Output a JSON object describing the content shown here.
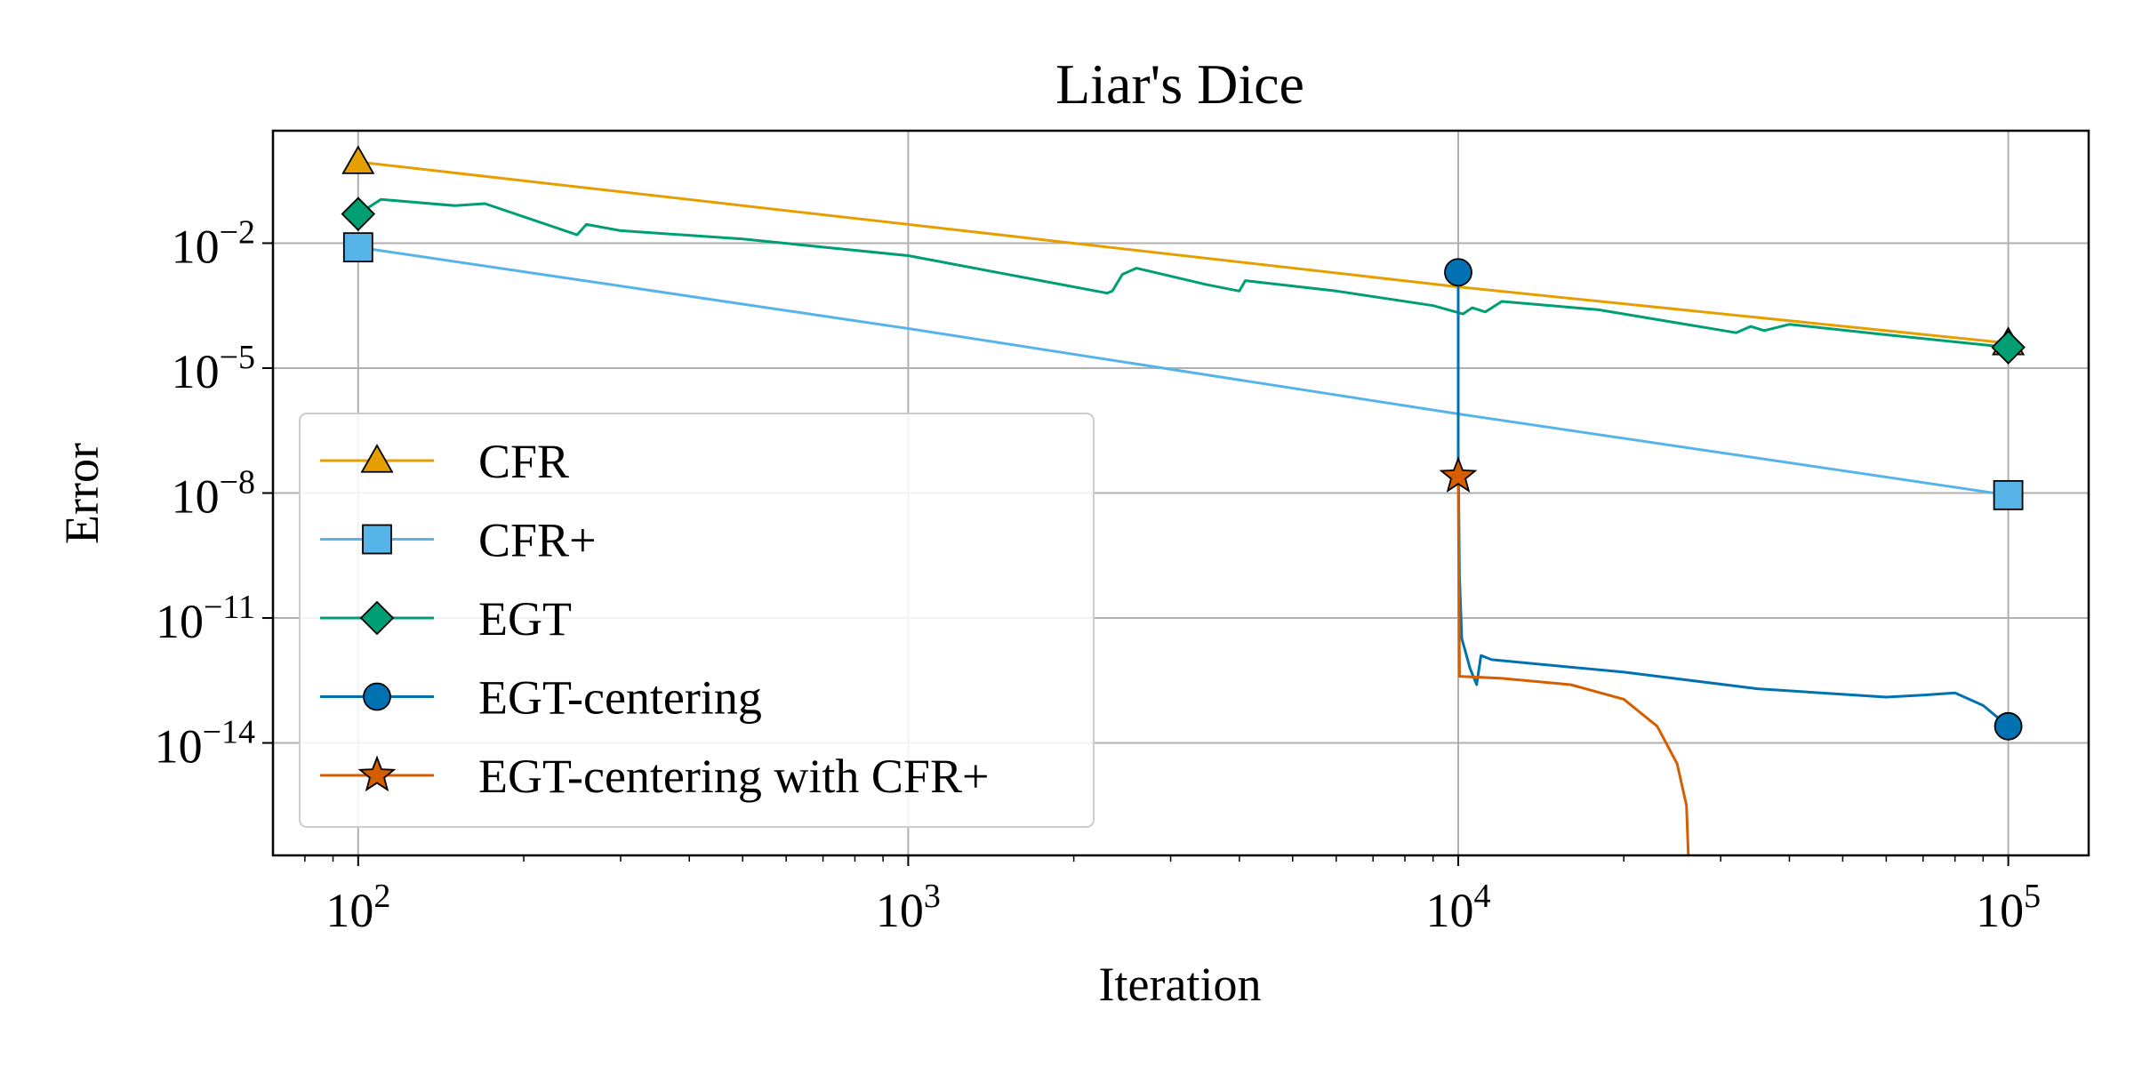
{
  "chart_data": {
    "type": "line",
    "title": "Liar's Dice",
    "xlabel": "Iteration",
    "ylabel": "Error",
    "xscale": "log",
    "yscale": "log",
    "xlim": [
      70,
      140000
    ],
    "ylim_exponents": [
      -16.7,
      0.7
    ],
    "grid": true,
    "legend_position": "lower-left",
    "x_ticks": [
      {
        "value": 100,
        "base": "10",
        "exp": "2"
      },
      {
        "value": 1000,
        "base": "10",
        "exp": "3"
      },
      {
        "value": 10000,
        "base": "10",
        "exp": "4"
      },
      {
        "value": 100000,
        "base": "10",
        "exp": "5"
      }
    ],
    "y_ticks": [
      {
        "value_exp": -2,
        "base": "10",
        "exp": "−2"
      },
      {
        "value_exp": -5,
        "base": "10",
        "exp": "−5"
      },
      {
        "value_exp": -8,
        "base": "10",
        "exp": "−8"
      },
      {
        "value_exp": -11,
        "base": "10",
        "exp": "−11"
      },
      {
        "value_exp": -14,
        "base": "10",
        "exp": "−14"
      }
    ],
    "series": [
      {
        "name": "CFR",
        "color": "#E69F00",
        "marker": "triangle",
        "points": [
          [
            100,
            -0.05
          ],
          [
            1000,
            -1.55
          ],
          [
            10000,
            -3.05
          ],
          [
            100000,
            -4.4
          ]
        ]
      },
      {
        "name": "CFR+",
        "color": "#56B4E9",
        "marker": "square",
        "points": [
          [
            100,
            -2.1
          ],
          [
            1000,
            -4.05
          ],
          [
            10000,
            -6.1
          ],
          [
            100000,
            -8.05
          ]
        ]
      },
      {
        "name": "EGT",
        "color": "#009E73",
        "marker": "diamond",
        "points": [
          [
            100,
            -1.3
          ],
          [
            110,
            -0.95
          ],
          [
            150,
            -1.1
          ],
          [
            170,
            -1.05
          ],
          [
            250,
            -1.8
          ],
          [
            260,
            -1.55
          ],
          [
            300,
            -1.7
          ],
          [
            500,
            -1.9
          ],
          [
            1000,
            -2.3
          ],
          [
            2300,
            -3.2
          ],
          [
            2350,
            -3.15
          ],
          [
            2450,
            -2.75
          ],
          [
            2600,
            -2.6
          ],
          [
            3500,
            -3
          ],
          [
            4000,
            -3.15
          ],
          [
            4100,
            -2.9
          ],
          [
            6000,
            -3.15
          ],
          [
            9000,
            -3.5
          ],
          [
            10200,
            -3.7
          ],
          [
            10600,
            -3.55
          ],
          [
            11200,
            -3.65
          ],
          [
            12000,
            -3.4
          ],
          [
            18000,
            -3.6
          ],
          [
            32000,
            -4.15
          ],
          [
            34000,
            -4.0
          ],
          [
            36000,
            -4.1
          ],
          [
            40000,
            -3.95
          ],
          [
            60000,
            -4.2
          ],
          [
            100000,
            -4.5
          ]
        ],
        "marker_points": [
          [
            100,
            -1.3
          ],
          [
            100000,
            -4.5
          ]
        ]
      },
      {
        "name": "EGT-centering",
        "color": "#0072B2",
        "marker": "circle",
        "points": [
          [
            10000,
            -2.7
          ],
          [
            10000,
            -7
          ],
          [
            10050,
            -10
          ],
          [
            10150,
            -11.5
          ],
          [
            10300,
            -11.8
          ],
          [
            10500,
            -12.2
          ],
          [
            10800,
            -12.6
          ],
          [
            11000,
            -11.9
          ],
          [
            11500,
            -12.0
          ],
          [
            20000,
            -12.3
          ],
          [
            35000,
            -12.7
          ],
          [
            60000,
            -12.9
          ],
          [
            70000,
            -12.85
          ],
          [
            80000,
            -12.8
          ],
          [
            90000,
            -13.1
          ],
          [
            100000,
            -13.6
          ]
        ],
        "marker_points": [
          [
            10000,
            -2.7
          ],
          [
            100000,
            -13.6
          ]
        ]
      },
      {
        "name": "EGT-centering with CFR+",
        "color": "#D55E00",
        "marker": "star",
        "points": [
          [
            10000,
            -7.6
          ],
          [
            10050,
            -12.4
          ],
          [
            12000,
            -12.45
          ],
          [
            16000,
            -12.6
          ],
          [
            20000,
            -12.95
          ],
          [
            23000,
            -13.6
          ],
          [
            25000,
            -14.5
          ],
          [
            26000,
            -15.5
          ],
          [
            26200,
            -16.7
          ]
        ],
        "marker_points": [
          [
            10000,
            -7.6
          ]
        ]
      }
    ]
  }
}
